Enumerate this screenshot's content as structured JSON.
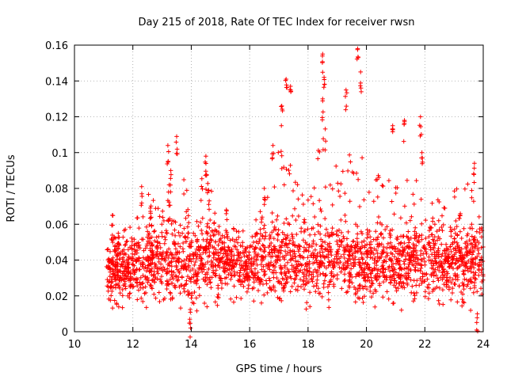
{
  "chart_data": {
    "type": "scatter",
    "title": "Day 215 of 2018, Rate Of TEC Index for receiver rwsn",
    "xlabel": "GPS time / hours",
    "ylabel": "ROTI / TECUs",
    "xlim": [
      10,
      24
    ],
    "ylim": [
      0,
      0.16
    ],
    "xticks": [
      10,
      12,
      14,
      16,
      18,
      20,
      22,
      24
    ],
    "xtick_labels": [
      "10",
      "12",
      "14",
      "16",
      "18",
      "20",
      "22",
      "24"
    ],
    "yticks": [
      0,
      0.02,
      0.04,
      0.06,
      0.08,
      0.1,
      0.12,
      0.14,
      0.16
    ],
    "ytick_labels": [
      "0",
      "0.02",
      "0.04",
      "0.06",
      "0.08",
      "0.1",
      "0.12",
      "0.14",
      "0.16"
    ],
    "grid": true,
    "marker": "+",
    "series": [
      {
        "name": "ROTI",
        "color": "#ff0000",
        "marker": "+",
        "x_range": [
          11.1,
          24.0
        ],
        "notable_points": [
          {
            "x": 11.3,
            "y": 0.065
          },
          {
            "x": 11.5,
            "y": 0.055
          },
          {
            "x": 12.3,
            "y": 0.081
          },
          {
            "x": 12.6,
            "y": 0.069
          },
          {
            "x": 13.2,
            "y": 0.104
          },
          {
            "x": 13.5,
            "y": 0.109
          },
          {
            "x": 13.3,
            "y": 0.09
          },
          {
            "x": 13.95,
            "y": 0.007
          },
          {
            "x": 14.5,
            "y": 0.098
          },
          {
            "x": 14.6,
            "y": 0.079
          },
          {
            "x": 15.2,
            "y": 0.068
          },
          {
            "x": 16.5,
            "y": 0.08
          },
          {
            "x": 16.8,
            "y": 0.104
          },
          {
            "x": 17.1,
            "y": 0.126
          },
          {
            "x": 17.25,
            "y": 0.141
          },
          {
            "x": 17.4,
            "y": 0.137
          },
          {
            "x": 18.5,
            "y": 0.155
          },
          {
            "x": 18.55,
            "y": 0.142
          },
          {
            "x": 18.5,
            "y": 0.13
          },
          {
            "x": 19.3,
            "y": 0.135
          },
          {
            "x": 19.7,
            "y": 0.158
          },
          {
            "x": 19.8,
            "y": 0.145
          },
          {
            "x": 20.9,
            "y": 0.115
          },
          {
            "x": 21.3,
            "y": 0.118
          },
          {
            "x": 21.85,
            "y": 0.12
          },
          {
            "x": 21.9,
            "y": 0.1
          },
          {
            "x": 23.2,
            "y": 0.065
          },
          {
            "x": 23.7,
            "y": 0.094
          },
          {
            "x": 23.8,
            "y": 0.01
          }
        ],
        "envelope": [
          {
            "x": 11.1,
            "ymin": 0.011,
            "ymax": 0.05
          },
          {
            "x": 11.5,
            "ymin": 0.01,
            "ymax": 0.055
          },
          {
            "x": 12.0,
            "ymin": 0.012,
            "ymax": 0.06
          },
          {
            "x": 12.5,
            "ymin": 0.011,
            "ymax": 0.078
          },
          {
            "x": 13.0,
            "ymin": 0.012,
            "ymax": 0.07
          },
          {
            "x": 13.5,
            "ymin": 0.01,
            "ymax": 0.095
          },
          {
            "x": 14.0,
            "ymin": 0.007,
            "ymax": 0.075
          },
          {
            "x": 14.5,
            "ymin": 0.013,
            "ymax": 0.09
          },
          {
            "x": 15.0,
            "ymin": 0.013,
            "ymax": 0.065
          },
          {
            "x": 15.5,
            "ymin": 0.014,
            "ymax": 0.06
          },
          {
            "x": 16.0,
            "ymin": 0.015,
            "ymax": 0.055
          },
          {
            "x": 16.5,
            "ymin": 0.013,
            "ymax": 0.08
          },
          {
            "x": 17.0,
            "ymin": 0.012,
            "ymax": 0.11
          },
          {
            "x": 17.5,
            "ymin": 0.012,
            "ymax": 0.09
          },
          {
            "x": 18.0,
            "ymin": 0.01,
            "ymax": 0.075
          },
          {
            "x": 18.5,
            "ymin": 0.011,
            "ymax": 0.12
          },
          {
            "x": 19.0,
            "ymin": 0.012,
            "ymax": 0.095
          },
          {
            "x": 19.5,
            "ymin": 0.011,
            "ymax": 0.11
          },
          {
            "x": 20.0,
            "ymin": 0.01,
            "ymax": 0.1
          },
          {
            "x": 20.5,
            "ymin": 0.01,
            "ymax": 0.085
          },
          {
            "x": 21.0,
            "ymin": 0.01,
            "ymax": 0.09
          },
          {
            "x": 21.5,
            "ymin": 0.011,
            "ymax": 0.085
          },
          {
            "x": 22.0,
            "ymin": 0.01,
            "ymax": 0.09
          },
          {
            "x": 22.5,
            "ymin": 0.011,
            "ymax": 0.075
          },
          {
            "x": 23.0,
            "ymin": 0.01,
            "ymax": 0.08
          },
          {
            "x": 23.5,
            "ymin": 0.009,
            "ymax": 0.085
          },
          {
            "x": 24.0,
            "ymin": 0.012,
            "ymax": 0.06
          }
        ],
        "typical_center": 0.03
      }
    ]
  }
}
